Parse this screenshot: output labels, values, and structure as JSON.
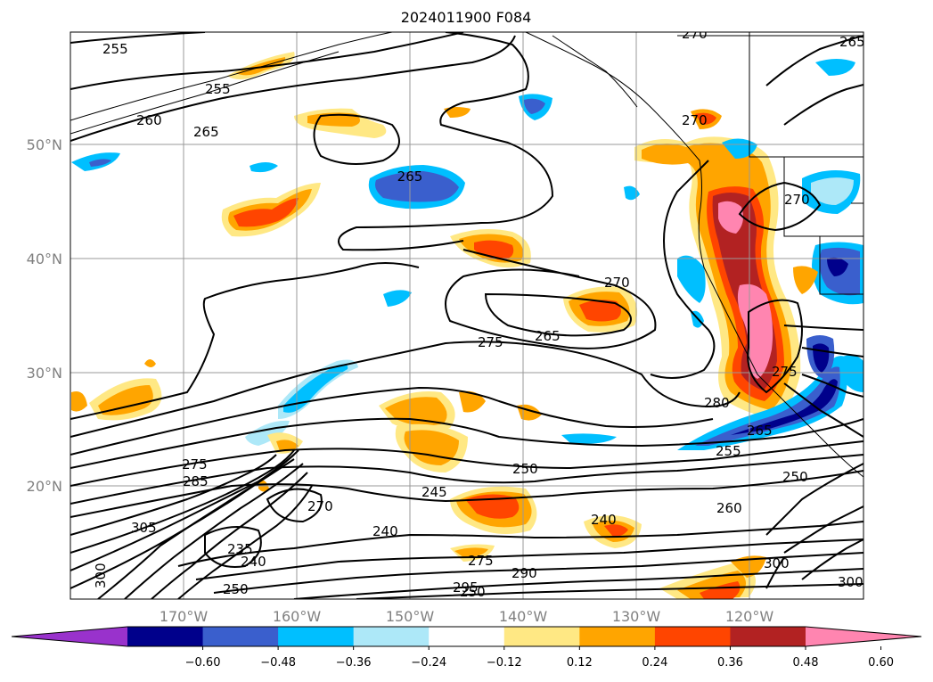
{
  "map": {
    "title": "2024011900 F084",
    "lat_labels": [
      "50°N",
      "40°N",
      "30°N",
      "20°N"
    ],
    "lon_labels": [
      "170°W",
      "160°W",
      "150°W",
      "140°W",
      "130°W",
      "120°W"
    ],
    "contour_labels": [
      "255",
      "255",
      "260",
      "265",
      "265",
      "265",
      "270",
      "270",
      "270",
      "265",
      "275",
      "275",
      "270",
      "280",
      "265",
      "255",
      "250",
      "250",
      "245",
      "240",
      "240",
      "260",
      "275",
      "285",
      "290",
      "295",
      "300",
      "305",
      "275",
      "270",
      "235",
      "240",
      "250",
      "250",
      "300",
      "300"
    ]
  },
  "colorbar": {
    "ticks": [
      "−0.60",
      "−0.48",
      "−0.36",
      "−0.24",
      "−0.12",
      "0.12",
      "0.24",
      "0.36",
      "0.48",
      "0.60"
    ],
    "colors": [
      "#9932cc",
      "#00008b",
      "#3a5fcd",
      "#00bfff",
      "#ade8f8",
      "#ffffff",
      "#ffe884",
      "#ffa500",
      "#ff4500",
      "#b22222",
      "#ff85b0"
    ]
  },
  "colors": {
    "strong_negative": "#00008b",
    "negative": "#3a5fcd",
    "mild_negative": "#00bfff",
    "weak_negative": "#ade8f8",
    "weak_positive": "#ffe884",
    "positive": "#ffa500",
    "strong_positive": "#ff4500",
    "very_strong_positive": "#b22222",
    "extreme_positive": "#ff85b0"
  }
}
